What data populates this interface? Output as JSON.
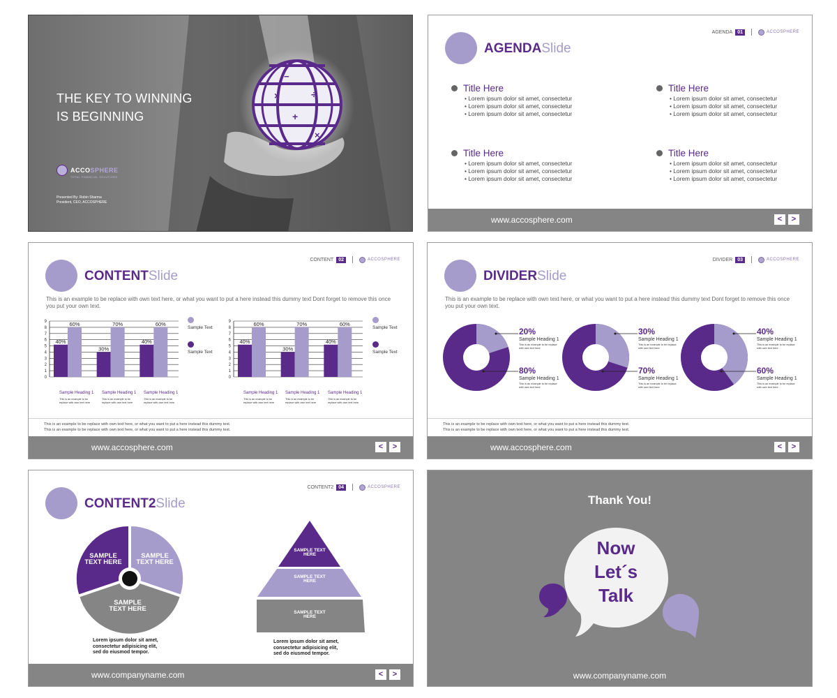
{
  "cover": {
    "title_line1": "THE KEY TO WINNING",
    "title_line2": "IS BEGINNING",
    "logo_name_a": "ACCO",
    "logo_name_b": "SPHERE",
    "logo_tagline": "TOTAL FINANCIAL SOLUTIONS",
    "presenter_line1": "Presented By: Robin Sharma",
    "presenter_line2": "President, CEO, ACCOSPHERE"
  },
  "brand": {
    "logo_text": "ACCOSPHERE",
    "accent": "#5a2a8a",
    "light": "#a69ccb",
    "gray": "#858585"
  },
  "nav": {
    "prev": "<",
    "next": ">"
  },
  "agenda": {
    "title_bold": "AGENDA",
    "title_light": "Slide",
    "header_label": "AGENDA",
    "header_num": "01",
    "url": "www.accosphere.com",
    "items": [
      {
        "title": "Title Here",
        "lines": [
          "Lorem ipsum dolor sit amet, consectetur",
          "Lorem ipsum dolor sit amet, consectetur",
          "Lorem ipsum dolor sit amet, consectetur"
        ]
      },
      {
        "title": "Title Here",
        "lines": [
          "Lorem ipsum dolor sit amet, consectetur",
          "Lorem ipsum dolor sit amet, consectetur",
          "Lorem ipsum dolor sit amet, consectetur"
        ]
      },
      {
        "title": "Title Here",
        "lines": [
          "Lorem ipsum dolor sit amet, consectetur",
          "Lorem ipsum dolor sit amet, consectetur",
          "Lorem ipsum dolor sit amet, consectetur"
        ]
      },
      {
        "title": "Title Here",
        "lines": [
          "Lorem ipsum dolor sit amet, consectetur",
          "Lorem ipsum dolor sit amet, consectetur",
          "Lorem ipsum dolor sit amet, consectetur"
        ]
      }
    ]
  },
  "content": {
    "title_bold": "CONTENT",
    "title_light": "Slide",
    "header_label": "CONTENT",
    "header_num": "02",
    "desc": "This is an example to be replace with own text here, or what you want to put a here instead this dummy text Dont forget to remove this once you put your own text.",
    "legend": [
      "Sample Text",
      "Sample Text"
    ],
    "heading": "Sample Heading 1",
    "body": "This is an example to be replace with own text here",
    "bottom_line1": "This is an example to be replace with own text here, or what you want to put a here instead this dummy text.",
    "bottom_line2": "This is an example to be replace with own text here, or what you want to put a here instead this dummy text.",
    "url": "www.accosphere.com"
  },
  "chart_data": [
    {
      "type": "bar",
      "categories": [
        "Sample Heading 1",
        "Sample Heading 1",
        "Sample Heading 1"
      ],
      "series": [
        {
          "name": "Sample Text",
          "values": [
            5.2,
            4,
            5.2
          ],
          "labels": [
            "40%",
            "30%",
            "40%"
          ],
          "color": "#5a2a8a"
        },
        {
          "name": "Sample Text",
          "values": [
            8,
            8,
            8
          ],
          "labels": [
            "60%",
            "70%",
            "60%"
          ],
          "color": "#a69ccb"
        }
      ],
      "ylim": [
        0,
        9
      ]
    },
    {
      "type": "bar",
      "categories": [
        "Sample Heading 1",
        "Sample Heading 1",
        "Sample Heading 1"
      ],
      "series": [
        {
          "name": "Sample Text",
          "values": [
            5.2,
            4,
            5.2
          ],
          "labels": [
            "40%",
            "30%",
            "40%"
          ],
          "color": "#5a2a8a"
        },
        {
          "name": "Sample Text",
          "values": [
            8,
            8,
            8
          ],
          "labels": [
            "60%",
            "70%",
            "60%"
          ],
          "color": "#a69ccb"
        }
      ],
      "ylim": [
        0,
        9
      ]
    },
    {
      "type": "pie",
      "labels": [
        "20%",
        "80%"
      ],
      "values": [
        20,
        80
      ]
    },
    {
      "type": "pie",
      "labels": [
        "30%",
        "70%"
      ],
      "values": [
        30,
        70
      ]
    },
    {
      "type": "pie",
      "labels": [
        "40%",
        "60%"
      ],
      "values": [
        40,
        60
      ]
    }
  ],
  "divider": {
    "title_bold": "DIVIDER",
    "title_light": "Slide",
    "header_label": "DIVIDER",
    "header_num": "03",
    "desc": "This is an example to be replace with own text here, or what you want to put a here instead this dummy text Dont forget to remove this once you put your own text.",
    "donuts": [
      {
        "top_pct": "20%",
        "bottom_pct": "80%"
      },
      {
        "top_pct": "30%",
        "bottom_pct": "70%"
      },
      {
        "top_pct": "40%",
        "bottom_pct": "60%"
      }
    ],
    "heading": "Sample Heading 1",
    "body": "This is an example to be replace with own text here",
    "bottom_line1": "This is an example to be replace with own text here, or what you want to put a here instead this dummy text.",
    "bottom_line2": "This is an example to be replace with own text here, or what you want to put a here instead this dummy text.",
    "url": "www.accosphere.com"
  },
  "content2": {
    "title_bold": "CONTENT2",
    "title_light": "Slide",
    "header_label": "CONTENT2",
    "header_num": "04",
    "pie_labels": [
      "SAMPLE TEXT HERE",
      "SAMPLE TEXT HERE",
      "SAMPLE TEXT HERE"
    ],
    "pyramid_labels": [
      "SAMPLE TEXT HERE",
      "SAMPLE TEXT HERE",
      "SAMPLE TEXT HERE"
    ],
    "caption_line1": "Lorem ipsum dolor sit amet,",
    "caption_line2": "consectetur adipisicing elit,",
    "caption_line3": "sed do eiusmod tempor.",
    "url": "www.companyname.com"
  },
  "thankyou": {
    "title": "Thank You!",
    "line1": "Now",
    "line2": "Let´s",
    "line3": "Talk",
    "url": "www.companyname.com"
  }
}
